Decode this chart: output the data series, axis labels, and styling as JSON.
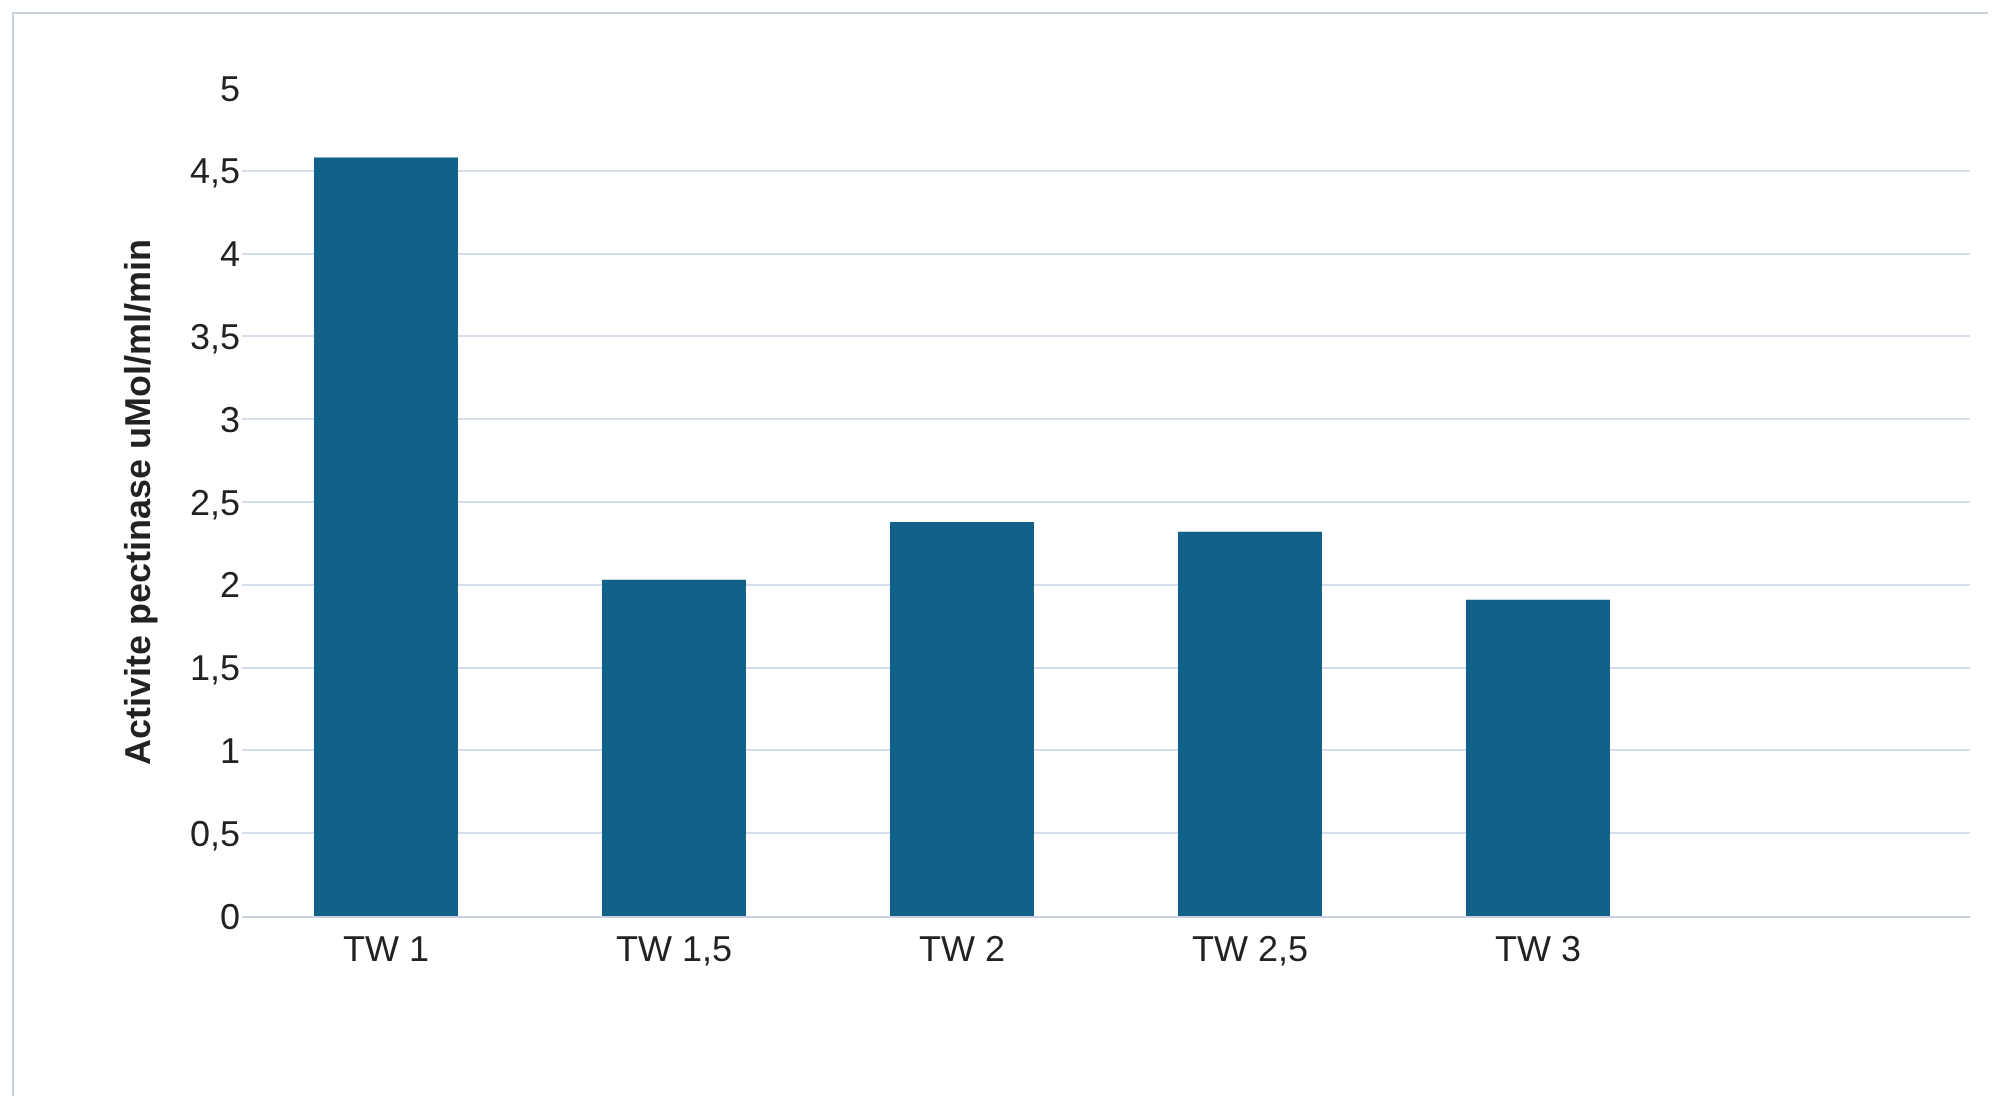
{
  "chart_data": {
    "type": "bar",
    "ylabel": "Activite pectinase uMol/ml/min",
    "categories": [
      "TW 1",
      "TW 1,5",
      "TW 2",
      "TW 2,5",
      "TW 3",
      null
    ],
    "values": [
      4.58,
      2.03,
      2.38,
      2.32,
      1.91,
      null
    ],
    "color": "#11618a",
    "ylim": [
      0,
      5
    ],
    "yticks": [
      0,
      {
        "value": 0.5,
        "label": "0,5"
      },
      1,
      {
        "value": 1.5,
        "label": "1,5"
      },
      2,
      {
        "value": 2.5,
        "label": "2,5"
      },
      3,
      {
        "value": 3.5,
        "label": "3,5"
      },
      4,
      {
        "value": 4.5,
        "label": "4,5"
      },
      5
    ],
    "grid": "y"
  }
}
